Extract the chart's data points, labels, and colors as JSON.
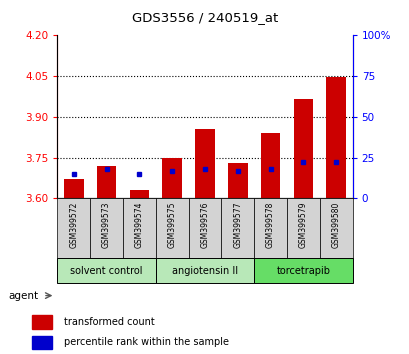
{
  "title": "GDS3556 / 240519_at",
  "samples": [
    "GSM399572",
    "GSM399573",
    "GSM399574",
    "GSM399575",
    "GSM399576",
    "GSM399577",
    "GSM399578",
    "GSM399579",
    "GSM399580"
  ],
  "red_values": [
    3.67,
    3.72,
    3.63,
    3.75,
    3.855,
    3.73,
    3.84,
    3.965,
    4.045
  ],
  "blue_values": [
    15,
    18,
    15,
    17,
    18,
    17,
    18,
    22,
    22
  ],
  "ymin": 3.6,
  "ymax": 4.2,
  "yticks": [
    3.6,
    3.75,
    3.9,
    4.05,
    4.2
  ],
  "y2min": 0,
  "y2max": 100,
  "y2ticks": [
    0,
    25,
    50,
    75,
    100
  ],
  "y2ticklabels": [
    "0",
    "25",
    "50",
    "75",
    "100%"
  ],
  "groups": [
    {
      "label": "solvent control",
      "start": 0,
      "end": 3,
      "color": "#b8e8b8"
    },
    {
      "label": "angiotensin II",
      "start": 3,
      "end": 6,
      "color": "#b8e8b8"
    },
    {
      "label": "torcetrapib",
      "start": 6,
      "end": 9,
      "color": "#66dd66"
    }
  ],
  "bar_color": "#cc0000",
  "blue_color": "#0000cc",
  "bar_width": 0.6,
  "legend_items": [
    "transformed count",
    "percentile rank within the sample"
  ],
  "agent_label": "agent"
}
